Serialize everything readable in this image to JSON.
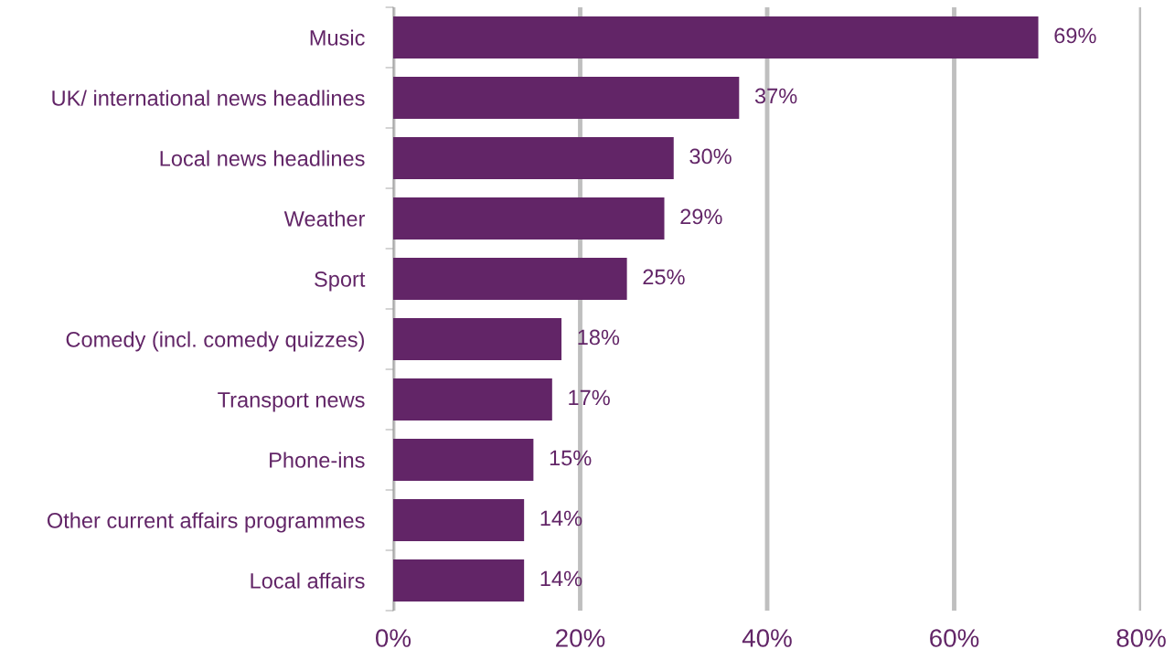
{
  "chart_data": {
    "type": "bar",
    "orientation": "horizontal",
    "categories": [
      "Music",
      "UK/ international news headlines",
      "Local news headlines",
      "Weather",
      "Sport",
      "Comedy (incl. comedy quizzes)",
      "Transport news",
      "Phone-ins",
      "Other current affairs programmes",
      "Local affairs"
    ],
    "values": [
      69,
      37,
      30,
      29,
      25,
      18,
      17,
      15,
      14,
      14
    ],
    "value_labels": [
      "69%",
      "37%",
      "30%",
      "29%",
      "25%",
      "18%",
      "17%",
      "15%",
      "14%",
      "14%"
    ],
    "color": "#622567",
    "xlim": [
      0,
      80
    ],
    "xticks": [
      {
        "value": 0,
        "label": "0%"
      },
      {
        "value": 20,
        "label": "20%"
      },
      {
        "value": 40,
        "label": "40%"
      },
      {
        "value": 60,
        "label": "60%"
      },
      {
        "value": 80,
        "label": "80%"
      }
    ],
    "grid": "x",
    "legend": false
  }
}
